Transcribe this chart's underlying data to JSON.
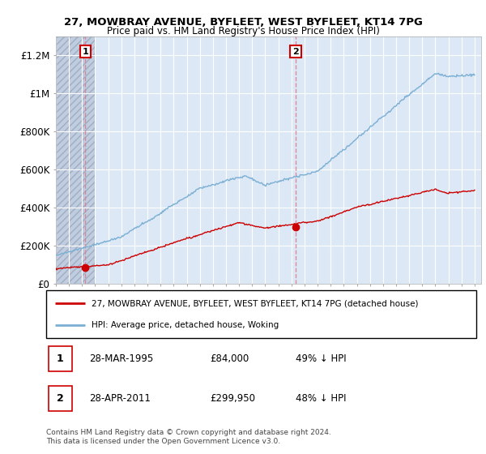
{
  "title1": "27, MOWBRAY AVENUE, BYFLEET, WEST BYFLEET, KT14 7PG",
  "title2": "Price paid vs. HM Land Registry's House Price Index (HPI)",
  "ylabel_ticks": [
    "£0",
    "£200K",
    "£400K",
    "£600K",
    "£800K",
    "£1M",
    "£1.2M"
  ],
  "ytick_values": [
    0,
    200000,
    400000,
    600000,
    800000,
    1000000,
    1200000
  ],
  "ylim": [
    0,
    1300000
  ],
  "xlim_start": 1993.0,
  "xlim_end": 2025.5,
  "hpi_color": "#7bafd4",
  "price_color": "#cc0000",
  "sale1_x": 1995.24,
  "sale1_y": 84000,
  "sale2_x": 2011.33,
  "sale2_y": 299950,
  "legend_line1": "27, MOWBRAY AVENUE, BYFLEET, WEST BYFLEET, KT14 7PG (detached house)",
  "legend_line2": "HPI: Average price, detached house, Woking",
  "table_row1": [
    "1",
    "28-MAR-1995",
    "£84,000",
    "49% ↓ HPI"
  ],
  "table_row2": [
    "2",
    "28-APR-2011",
    "£299,950",
    "48% ↓ HPI"
  ],
  "footer": "Contains HM Land Registry data © Crown copyright and database right 2024.\nThis data is licensed under the Open Government Licence v3.0.",
  "bg_color": "#dce8f5",
  "hatch_color": "#c0cce0",
  "grid_color": "#ffffff",
  "hatched_region_end": 1996.0
}
